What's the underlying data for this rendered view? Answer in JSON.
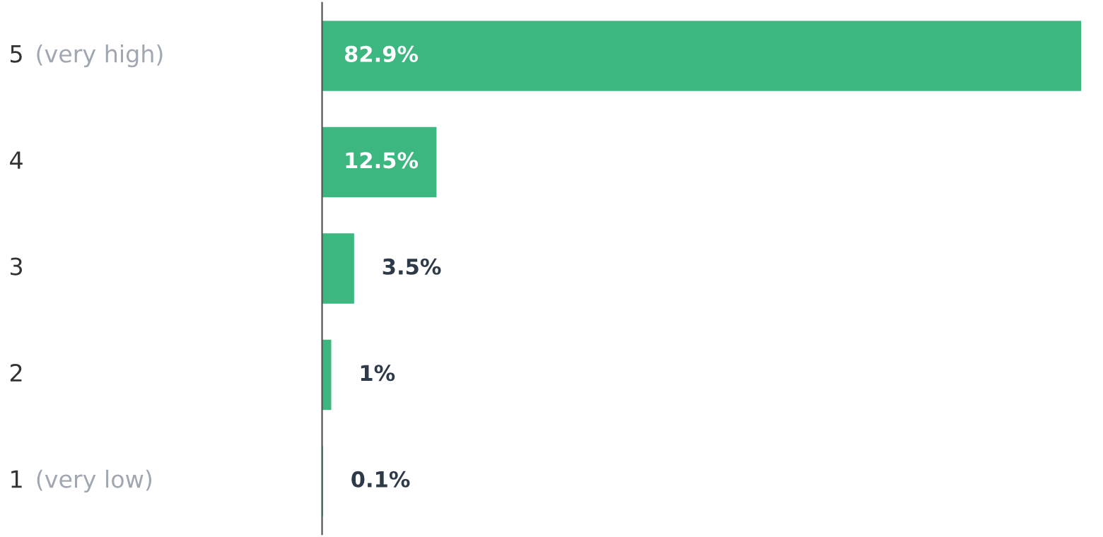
{
  "chart_data": {
    "type": "bar",
    "orientation": "horizontal",
    "categories": [
      "5 (very high)",
      "4",
      "3",
      "2",
      "1 (very low)"
    ],
    "values": [
      82.9,
      12.5,
      3.5,
      1,
      0.1
    ],
    "value_labels": [
      "82.9%",
      "12.5%",
      "3.5%",
      "1%",
      "0.1%"
    ],
    "color": "#3cb77f",
    "xlim": [
      0,
      83
    ]
  }
}
